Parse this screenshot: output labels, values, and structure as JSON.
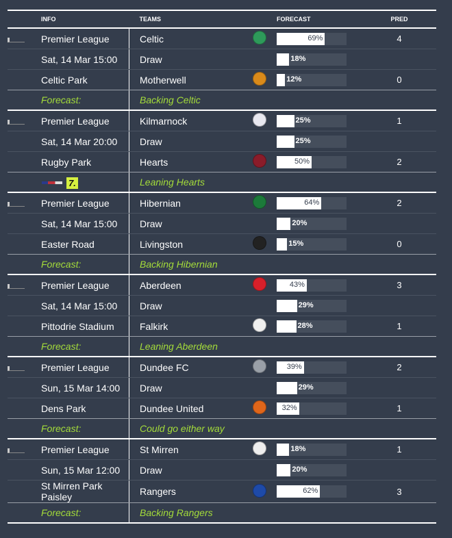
{
  "headers": {
    "info": "INFO",
    "teams": "TEAMS",
    "forecast": "FORECAST",
    "pred": "PRED"
  },
  "matches": [
    {
      "league": "Premier League",
      "date": "Sat, 14 Mar 15:00",
      "venue": "Celtic Park",
      "home": "Celtic",
      "away": "Motherwell",
      "draw": "Draw",
      "home_pct": 69,
      "draw_pct": 18,
      "away_pct": 12,
      "home_pred": "4",
      "away_pred": "0",
      "forecast_label": "Forecast:",
      "forecast_text": "Backing Celtic",
      "home_color": "#2e9a5a",
      "away_color": "#d98a1a"
    },
    {
      "league": "Premier League",
      "date": "Sat, 14 Mar 20:00",
      "venue": "Rugby Park",
      "home": "Kilmarnock",
      "away": "Hearts",
      "draw": "Draw",
      "home_pct": 25,
      "draw_pct": 25,
      "away_pct": 50,
      "home_pred": "1",
      "away_pred": "2",
      "forecast_label": "",
      "forecast_text": "Leaning Hearts",
      "tv_badge": "7.",
      "home_color": "#e8e8f0",
      "away_color": "#8a1c2a"
    },
    {
      "league": "Premier League",
      "date": "Sat, 14 Mar 15:00",
      "venue": "Easter Road",
      "home": "Hibernian",
      "away": "Livingston",
      "draw": "Draw",
      "home_pct": 64,
      "draw_pct": 20,
      "away_pct": 15,
      "home_pred": "2",
      "away_pred": "0",
      "forecast_label": "Forecast:",
      "forecast_text": "Backing Hibernian",
      "home_color": "#1c7a3a",
      "away_color": "#222222"
    },
    {
      "league": "Premier League",
      "date": "Sat, 14 Mar 15:00",
      "venue": "Pittodrie Stadium",
      "home": "Aberdeen",
      "away": "Falkirk",
      "draw": "Draw",
      "home_pct": 43,
      "draw_pct": 29,
      "away_pct": 28,
      "home_pred": "3",
      "away_pred": "1",
      "forecast_label": "Forecast:",
      "forecast_text": "Leaning Aberdeen",
      "home_color": "#d8202a",
      "away_color": "#f0f0f0"
    },
    {
      "league": "Premier League",
      "date": "Sun, 15 Mar 14:00",
      "venue": "Dens Park",
      "home": "Dundee FC",
      "away": "Dundee United",
      "draw": "Draw",
      "home_pct": 39,
      "draw_pct": 29,
      "away_pct": 32,
      "home_pred": "2",
      "away_pred": "1",
      "forecast_label": "Forecast:",
      "forecast_text": "Could go either way",
      "home_color": "#9aa0a8",
      "away_color": "#e0661a"
    },
    {
      "league": "Premier League",
      "date": "Sun, 15 Mar 12:00",
      "venue": "St Mirren Park Paisley",
      "home": "St Mirren",
      "away": "Rangers",
      "draw": "Draw",
      "home_pct": 18,
      "draw_pct": 20,
      "away_pct": 62,
      "home_pred": "1",
      "away_pred": "3",
      "forecast_label": "Forecast:",
      "forecast_text": "Backing Rangers",
      "home_color": "#eeeeee",
      "away_color": "#1e4aa8"
    }
  ]
}
